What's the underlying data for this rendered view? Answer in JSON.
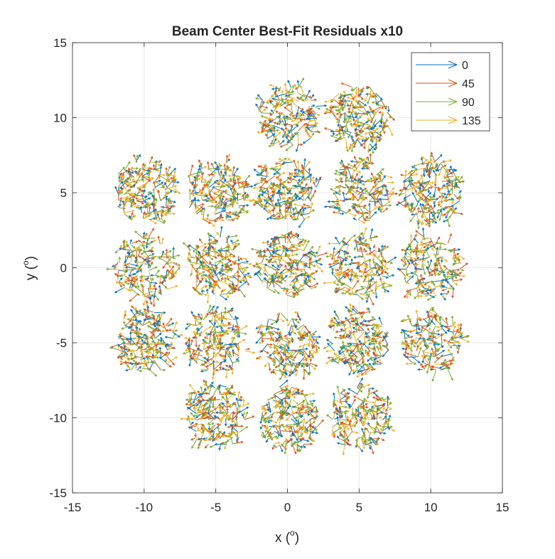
{
  "chart_data": {
    "type": "quiver",
    "title": "Beam Center Best-Fit Residuals x10",
    "xlabel": "x (",
    "xlabel_sup": "o",
    "xlabel_close": ")",
    "ylabel": "y (",
    "ylabel_sup": "o",
    "ylabel_close": ")",
    "xlim": [
      -15,
      15
    ],
    "ylim": [
      -15,
      15
    ],
    "xticks": [
      "-15",
      "-10",
      "-5",
      "0",
      "5",
      "10",
      "15"
    ],
    "yticks": [
      "-15",
      "-10",
      "-5",
      "0",
      "5",
      "10",
      "15"
    ],
    "xtick_values": [
      -15,
      -10,
      -5,
      0,
      5,
      10,
      15
    ],
    "ytick_values": [
      -15,
      -10,
      -5,
      0,
      5,
      10,
      15
    ],
    "grid": true,
    "legend_position": "top-right",
    "series": [
      {
        "name": "0",
        "color": "#0072BD"
      },
      {
        "name": "45",
        "color": "#D95319"
      },
      {
        "name": "90",
        "color": "#77AC30"
      },
      {
        "name": "135",
        "color": "#EDB120"
      }
    ],
    "beam_centers": [
      [
        0,
        10
      ],
      [
        5,
        10
      ],
      [
        -10,
        5
      ],
      [
        -5,
        5
      ],
      [
        0,
        5
      ],
      [
        5,
        5
      ],
      [
        10,
        5
      ],
      [
        -10,
        0
      ],
      [
        -5,
        0
      ],
      [
        0,
        0
      ],
      [
        5,
        0
      ],
      [
        10,
        0
      ],
      [
        -10,
        -5
      ],
      [
        -5,
        -5
      ],
      [
        0,
        -5
      ],
      [
        5,
        -5
      ],
      [
        10,
        -5
      ],
      [
        -5,
        -10
      ],
      [
        0,
        -10
      ],
      [
        5,
        -10
      ]
    ],
    "beam_radius": 2.2
  }
}
